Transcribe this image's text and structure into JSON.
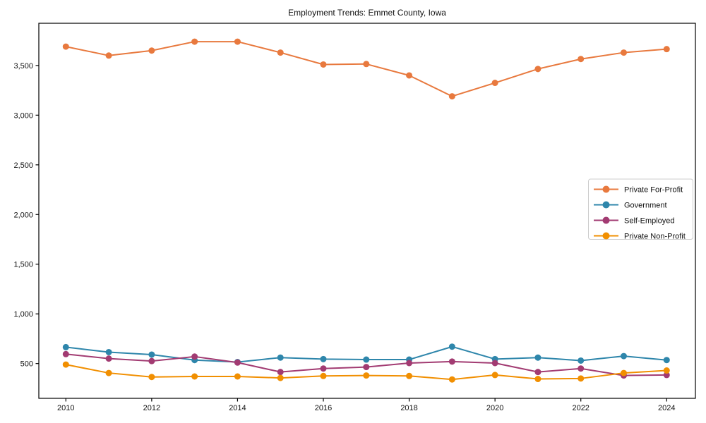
{
  "chart_data": {
    "type": "line",
    "title": "Employment Trends: Emmet County, Iowa",
    "xlabel": "",
    "ylabel": "",
    "x": [
      2010,
      2011,
      2012,
      2013,
      2014,
      2015,
      2016,
      2017,
      2018,
      2019,
      2020,
      2021,
      2022,
      2023,
      2024
    ],
    "series": [
      {
        "name": "Private For-Profit",
        "color": "#E8793E",
        "values": [
          3690,
          3600,
          3650,
          3740,
          3740,
          3630,
          3510,
          3515,
          3400,
          3190,
          3325,
          3465,
          3565,
          3630,
          3665
        ]
      },
      {
        "name": "Government",
        "color": "#2E86AB",
        "values": [
          665,
          615,
          590,
          535,
          515,
          560,
          545,
          540,
          540,
          670,
          545,
          560,
          530,
          575,
          535
        ]
      },
      {
        "name": "Self-Employed",
        "color": "#A23B72",
        "values": [
          595,
          550,
          525,
          570,
          510,
          415,
          450,
          465,
          505,
          520,
          505,
          415,
          450,
          380,
          385
        ]
      },
      {
        "name": "Private Non-Profit",
        "color": "#F18F01",
        "values": [
          490,
          405,
          365,
          370,
          370,
          355,
          375,
          380,
          375,
          340,
          385,
          345,
          350,
          405,
          430
        ]
      }
    ],
    "xticks": {
      "values": [
        2010,
        2012,
        2014,
        2016,
        2018,
        2020,
        2022,
        2024
      ],
      "labels": [
        "2010",
        "2012",
        "2014",
        "2016",
        "2018",
        "2020",
        "2022",
        "2024"
      ]
    },
    "yticks": {
      "values": [
        500,
        1000,
        1500,
        2000,
        2500,
        3000,
        3500
      ],
      "labels": [
        "500",
        "1,000",
        "1,500",
        "2,000",
        "2,500",
        "3,000",
        "3,500"
      ]
    },
    "xlim": [
      2009.37,
      2024.67
    ],
    "ylim": [
      150,
      3925
    ],
    "grid": false,
    "legend_position": "center right",
    "marker": "circle",
    "line_width": 2,
    "marker_radius": 4.5,
    "axis_color": "#000000",
    "legend_border_color": "#cccccc",
    "background_color": "#ffffff"
  }
}
